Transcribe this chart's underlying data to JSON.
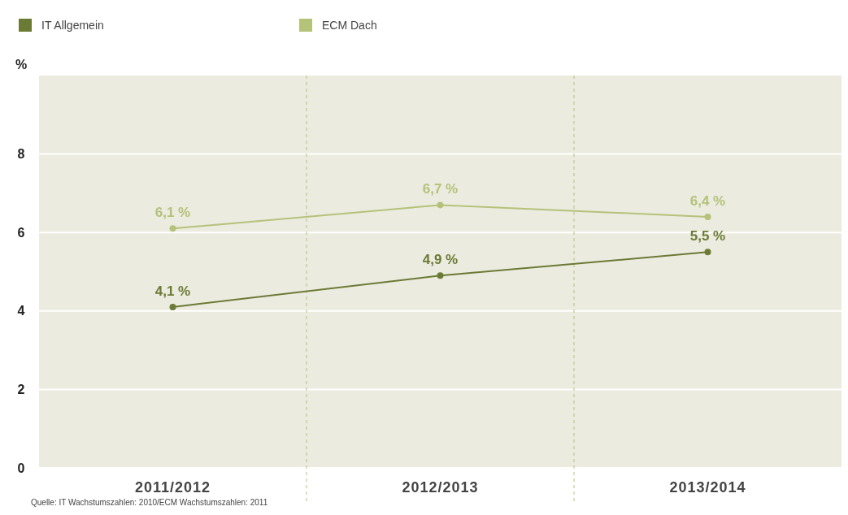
{
  "chart_data": {
    "type": "line",
    "ylabel": "%",
    "categories": [
      "2011/2012",
      "2012/2013",
      "2013/2014"
    ],
    "series": [
      {
        "name": "IT Allgemein",
        "color": "#6b7a35",
        "values": [
          4.1,
          4.9,
          5.5
        ],
        "value_labels": [
          "4,1 %",
          "4,9 %",
          "5,5 %"
        ]
      },
      {
        "name": "ECM Dach",
        "color": "#b5c27a",
        "values": [
          6.1,
          6.7,
          6.4
        ],
        "value_labels": [
          "6,1 %",
          "6,7 %",
          "6,4 %"
        ]
      }
    ],
    "ylim": [
      0,
      10
    ],
    "yticks": [
      0,
      2,
      4,
      6,
      8
    ],
    "grid": "y",
    "legend": "top left",
    "marker": "circle",
    "line_style": "solid",
    "annotations": [
      "Quelle: IT Wachstumszahlen: 2010/ECM Wachstumszahlen: 2011"
    ]
  }
}
